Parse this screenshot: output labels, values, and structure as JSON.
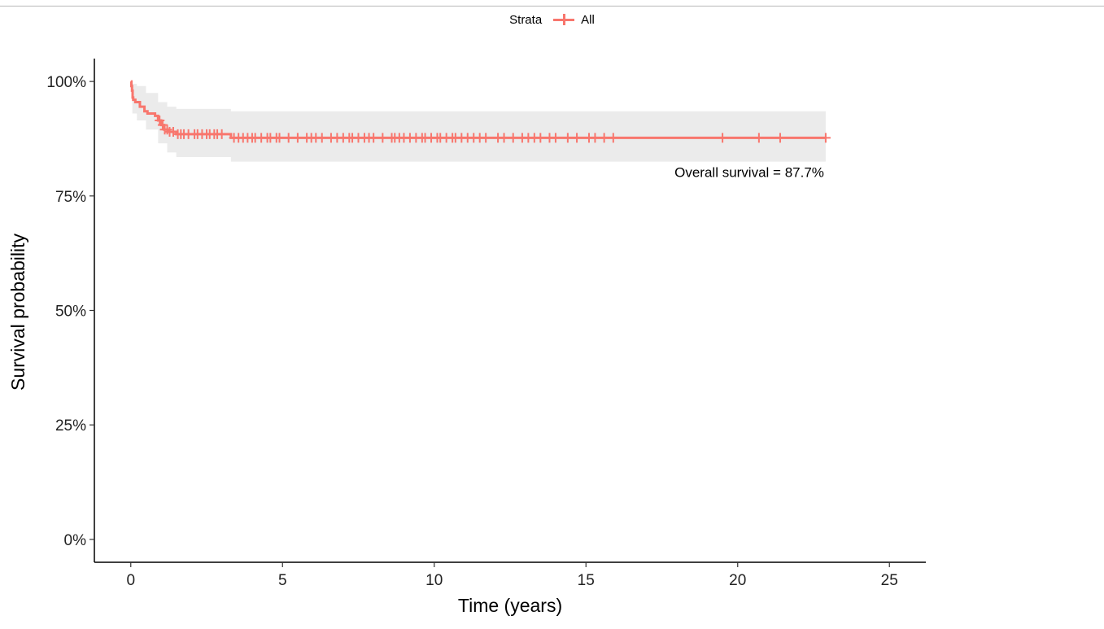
{
  "legend": {
    "title": "Strata",
    "entries": [
      {
        "label": "All",
        "color": "#F8766D"
      }
    ]
  },
  "chart_data": {
    "type": "line",
    "title": "",
    "xlabel": "Time (years)",
    "ylabel": "Survival probability",
    "xlim": [
      -1.2,
      26.2
    ],
    "ylim": [
      -0.05,
      1.05
    ],
    "x_ticks": [
      0,
      5,
      10,
      15,
      20,
      25
    ],
    "x_tick_labels": [
      "0",
      "5",
      "10",
      "15",
      "20",
      "25"
    ],
    "y_ticks": [
      0,
      0.25,
      0.5,
      0.75,
      1.0
    ],
    "y_tick_labels": [
      "0%",
      "25%",
      "50%",
      "75%",
      "100%"
    ],
    "grid": false,
    "legend_position": "top",
    "series": [
      {
        "name": "All",
        "color": "#F8766D",
        "step": [
          {
            "x": 0,
            "y": 1.0
          },
          {
            "x": 0.02,
            "y": 0.99
          },
          {
            "x": 0.04,
            "y": 0.98
          },
          {
            "x": 0.06,
            "y": 0.965
          },
          {
            "x": 0.08,
            "y": 0.96
          },
          {
            "x": 0.15,
            "y": 0.955
          },
          {
            "x": 0.3,
            "y": 0.945
          },
          {
            "x": 0.45,
            "y": 0.935
          },
          {
            "x": 0.55,
            "y": 0.93
          },
          {
            "x": 0.8,
            "y": 0.925
          },
          {
            "x": 0.9,
            "y": 0.915
          },
          {
            "x": 1.0,
            "y": 0.905
          },
          {
            "x": 1.1,
            "y": 0.895
          },
          {
            "x": 1.25,
            "y": 0.89
          },
          {
            "x": 1.5,
            "y": 0.885
          },
          {
            "x": 3.3,
            "y": 0.877
          },
          {
            "x": 22.9,
            "y": 0.877
          }
        ],
        "ci_band": [
          {
            "x": 0,
            "lower": 1.0,
            "upper": 1.0
          },
          {
            "x": 0.05,
            "lower": 0.93,
            "upper": 0.995
          },
          {
            "x": 0.2,
            "lower": 0.915,
            "upper": 0.99
          },
          {
            "x": 0.5,
            "lower": 0.895,
            "upper": 0.975
          },
          {
            "x": 0.9,
            "lower": 0.865,
            "upper": 0.955
          },
          {
            "x": 1.2,
            "lower": 0.845,
            "upper": 0.945
          },
          {
            "x": 1.5,
            "lower": 0.835,
            "upper": 0.94
          },
          {
            "x": 3.3,
            "lower": 0.825,
            "upper": 0.935
          },
          {
            "x": 22.9,
            "lower": 0.825,
            "upper": 0.93
          }
        ],
        "censor_times": [
          0.95,
          1.05,
          1.12,
          1.2,
          1.28,
          1.4,
          1.55,
          1.65,
          1.75,
          1.9,
          2.1,
          2.2,
          2.35,
          2.5,
          2.6,
          2.75,
          2.85,
          3.0,
          3.4,
          3.55,
          3.7,
          3.85,
          4.0,
          4.1,
          4.3,
          4.5,
          4.6,
          4.8,
          4.9,
          5.2,
          5.5,
          5.8,
          5.95,
          6.1,
          6.3,
          6.6,
          6.8,
          7.0,
          7.2,
          7.3,
          7.5,
          7.7,
          7.85,
          8.0,
          8.3,
          8.6,
          8.7,
          8.85,
          9.0,
          9.2,
          9.4,
          9.6,
          9.7,
          9.9,
          10.1,
          10.2,
          10.4,
          10.6,
          10.7,
          10.9,
          11.1,
          11.3,
          11.5,
          11.7,
          12.1,
          12.3,
          12.6,
          12.9,
          13.1,
          13.3,
          13.5,
          13.8,
          14.0,
          14.4,
          14.7,
          15.1,
          15.3,
          15.6,
          15.9,
          19.5,
          20.7,
          21.4,
          22.9
        ],
        "annotation": "Overall survival = 87.7%"
      }
    ]
  }
}
